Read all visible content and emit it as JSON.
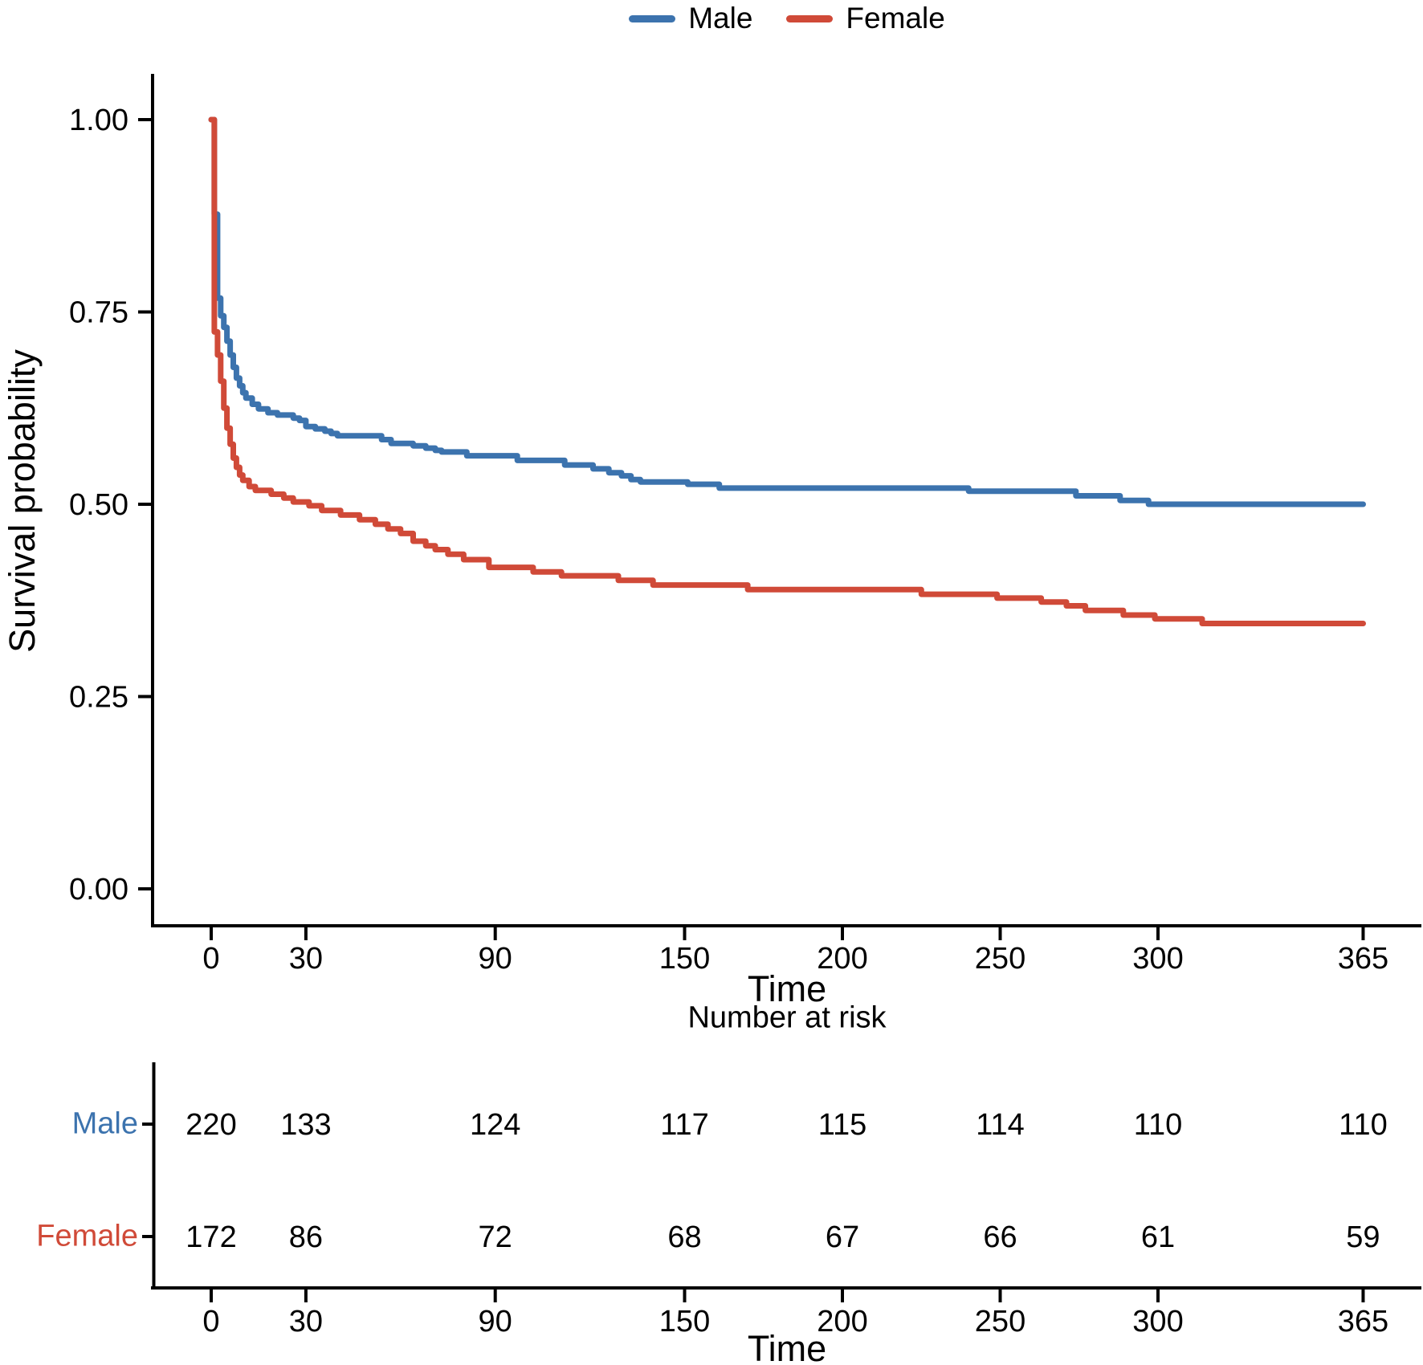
{
  "figure": {
    "background": "#ffffff"
  },
  "legend": {
    "items": [
      {
        "label": "Male",
        "color": "#3C73AE"
      },
      {
        "label": "Female",
        "color": "#D04A38"
      }
    ]
  },
  "chart_data": {
    "type": "line",
    "subtype": "kaplan-meier-step",
    "title": "",
    "xlabel": "Time",
    "ylabel": "Survival probability",
    "xlim": [
      0,
      365
    ],
    "ylim": [
      0,
      1
    ],
    "x_ticks": [
      0,
      30,
      90,
      150,
      200,
      250,
      300,
      365
    ],
    "y_ticks": [
      {
        "v": 1.0,
        "label": "1.00"
      },
      {
        "v": 0.75,
        "label": "0.75"
      },
      {
        "v": 0.5,
        "label": "0.50"
      },
      {
        "v": 0.25,
        "label": "0.25"
      },
      {
        "v": 0.0,
        "label": "0.00"
      }
    ],
    "grid": false,
    "legend_position": "top",
    "series": [
      {
        "name": "Male",
        "color": "#3C73AE",
        "points": [
          [
            0,
            1.0
          ],
          [
            1,
            0.877
          ],
          [
            2,
            0.768
          ],
          [
            3,
            0.745
          ],
          [
            4,
            0.73
          ],
          [
            5,
            0.712
          ],
          [
            6,
            0.694
          ],
          [
            7,
            0.678
          ],
          [
            8,
            0.664
          ],
          [
            9,
            0.654
          ],
          [
            10,
            0.645
          ],
          [
            11,
            0.638
          ],
          [
            13,
            0.63
          ],
          [
            15,
            0.624
          ],
          [
            18,
            0.619
          ],
          [
            21,
            0.616
          ],
          [
            26,
            0.612
          ],
          [
            28,
            0.609
          ],
          [
            30,
            0.601
          ],
          [
            33,
            0.598
          ],
          [
            36,
            0.595
          ],
          [
            38,
            0.592
          ],
          [
            40,
            0.589
          ],
          [
            54,
            0.584
          ],
          [
            57,
            0.579
          ],
          [
            64,
            0.576
          ],
          [
            68,
            0.573
          ],
          [
            71,
            0.57
          ],
          [
            73,
            0.568
          ],
          [
            81,
            0.563
          ],
          [
            97,
            0.557
          ],
          [
            112,
            0.551
          ],
          [
            121,
            0.546
          ],
          [
            126,
            0.541
          ],
          [
            130,
            0.537
          ],
          [
            133,
            0.532
          ],
          [
            136,
            0.529
          ],
          [
            151,
            0.526
          ],
          [
            161,
            0.521
          ],
          [
            240,
            0.517
          ],
          [
            274,
            0.511
          ],
          [
            288,
            0.505
          ],
          [
            297,
            0.5
          ]
        ]
      },
      {
        "name": "Female",
        "color": "#D04A38",
        "points": [
          [
            0,
            1.0
          ],
          [
            1,
            0.724
          ],
          [
            2,
            0.694
          ],
          [
            3,
            0.66
          ],
          [
            4,
            0.625
          ],
          [
            5,
            0.599
          ],
          [
            6,
            0.578
          ],
          [
            7,
            0.56
          ],
          [
            8,
            0.548
          ],
          [
            9,
            0.538
          ],
          [
            10,
            0.531
          ],
          [
            12,
            0.523
          ],
          [
            14,
            0.518
          ],
          [
            19,
            0.513
          ],
          [
            23,
            0.508
          ],
          [
            26,
            0.503
          ],
          [
            31,
            0.498
          ],
          [
            35,
            0.492
          ],
          [
            41,
            0.486
          ],
          [
            47,
            0.48
          ],
          [
            52,
            0.474
          ],
          [
            56,
            0.468
          ],
          [
            60,
            0.462
          ],
          [
            64,
            0.452
          ],
          [
            68,
            0.446
          ],
          [
            71,
            0.441
          ],
          [
            75,
            0.435
          ],
          [
            80,
            0.428
          ],
          [
            88,
            0.418
          ],
          [
            102,
            0.412
          ],
          [
            111,
            0.407
          ],
          [
            129,
            0.401
          ],
          [
            140,
            0.395
          ],
          [
            170,
            0.389
          ],
          [
            225,
            0.383
          ],
          [
            249,
            0.378
          ],
          [
            263,
            0.373
          ],
          [
            271,
            0.368
          ],
          [
            277,
            0.362
          ],
          [
            289,
            0.356
          ],
          [
            299,
            0.351
          ],
          [
            314,
            0.345
          ]
        ]
      }
    ]
  },
  "risk_table": {
    "title": "Number at risk",
    "xlabel": "Time",
    "x_ticks": [
      0,
      30,
      90,
      150,
      200,
      250,
      300,
      365
    ],
    "rows": [
      {
        "label": "Male",
        "color": "#3C73AE",
        "values": [
          220,
          133,
          124,
          117,
          115,
          114,
          110,
          110
        ]
      },
      {
        "label": "Female",
        "color": "#D04A38",
        "values": [
          172,
          86,
          72,
          68,
          67,
          66,
          61,
          59
        ]
      }
    ]
  }
}
